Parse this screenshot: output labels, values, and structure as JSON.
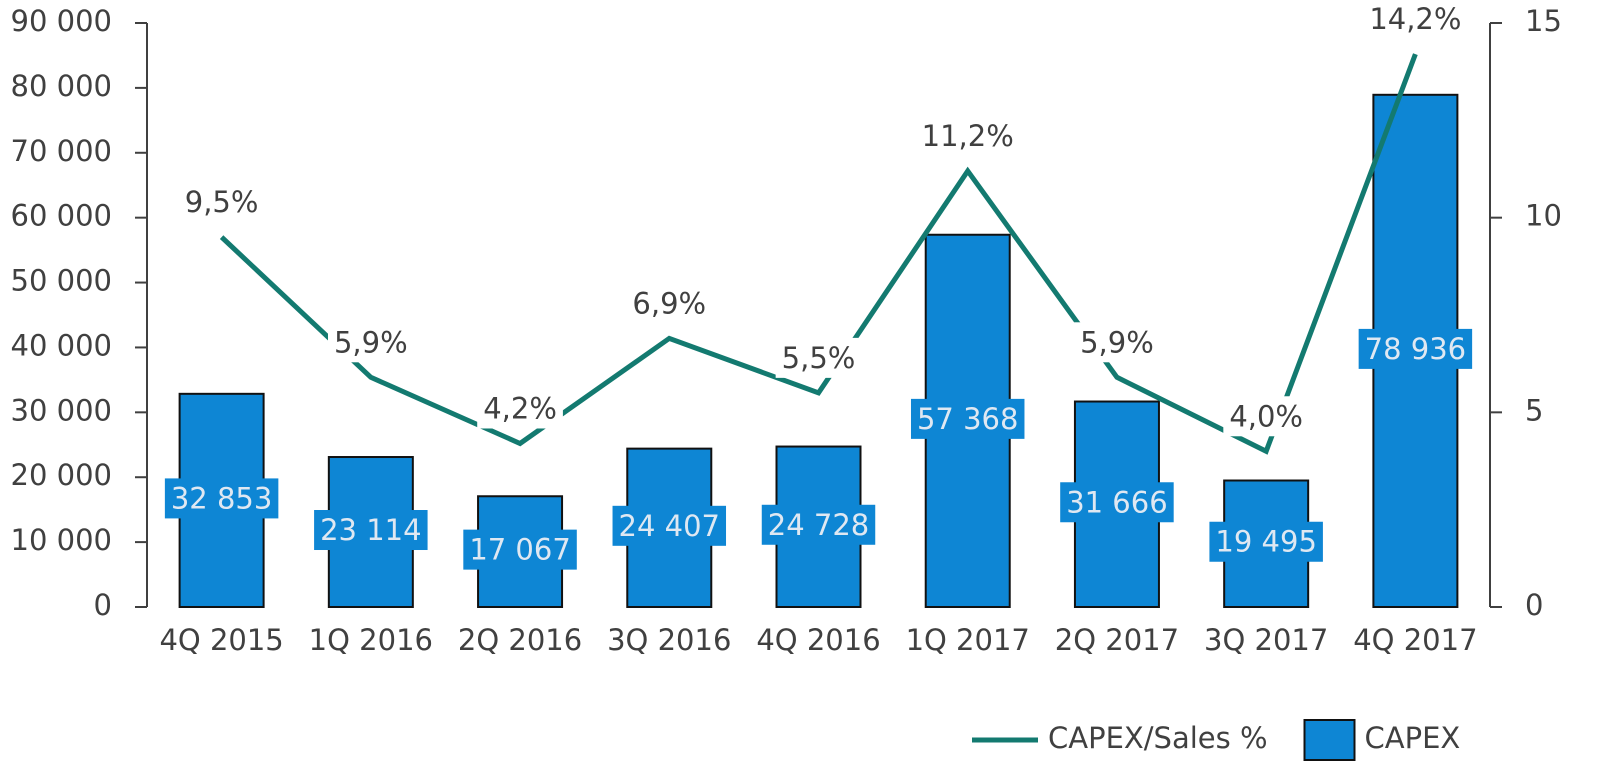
{
  "chart_data": {
    "type": "bar",
    "categories": [
      "4Q 2015",
      "1Q 2016",
      "2Q 2016",
      "3Q 2016",
      "4Q 2016",
      "1Q 2017",
      "2Q 2017",
      "3Q 2017",
      "4Q 2017"
    ],
    "series": [
      {
        "name": "CAPEX/Sales %",
        "type": "line",
        "axis": "y2",
        "color": "#137a70",
        "values": [
          9.5,
          5.9,
          4.2,
          6.9,
          5.5,
          11.2,
          5.9,
          4.0,
          14.2
        ],
        "value_labels": [
          "9,5%",
          "5,9%",
          "4,2%",
          "6,9%",
          "5,5%",
          "11,2%",
          "5,9%",
          "4,0%",
          "14,2%"
        ]
      },
      {
        "name": "CAPEX",
        "type": "bar",
        "color": "#0e86d4",
        "values": [
          32853,
          23114,
          17067,
          24407,
          24728,
          57368,
          31666,
          19495,
          78936
        ],
        "value_labels": [
          "32 853",
          "23 114",
          "17 067",
          "24 407",
          "24 728",
          "57 368",
          "31 666",
          "19 495",
          "78 936"
        ]
      }
    ],
    "ylim": [
      0,
      90000
    ],
    "yticks": [
      0,
      {
        "value": 10000,
        "label": "10 000"
      },
      {
        "value": 20000,
        "label": "20 000"
      },
      {
        "value": 30000,
        "label": "30 000"
      },
      {
        "value": 40000,
        "label": "40 000"
      },
      {
        "value": 50000,
        "label": "50 000"
      },
      {
        "value": 60000,
        "label": "60 000"
      },
      {
        "value": 70000,
        "label": "70 000"
      },
      {
        "value": 80000,
        "label": "80 000"
      },
      {
        "value": 90000,
        "label": "90 000"
      }
    ],
    "y2lim": [
      0,
      15
    ],
    "y2ticks": [
      0,
      5,
      10,
      15
    ],
    "grid": false,
    "legend": "bottom-right"
  }
}
